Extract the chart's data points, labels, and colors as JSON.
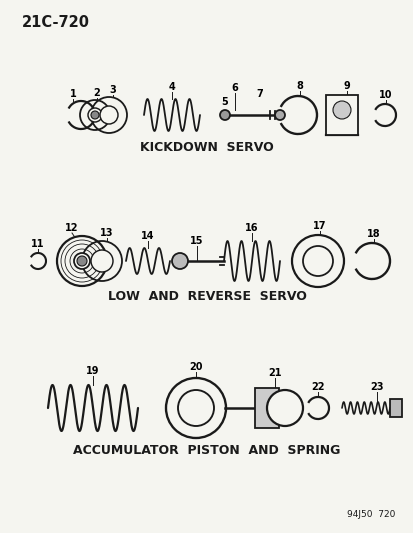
{
  "title_code": "21C-720",
  "bg_color": "#f5f5f0",
  "line_color": "#1a1a1a",
  "section1_label": "KICKDOWN  SERVO",
  "section2_label": "LOW  AND  REVERSE  SERVO",
  "section3_label": "ACCUMULATOR  PISTON  AND  SPRING",
  "footer": "94J50  720",
  "figsize": [
    4.14,
    5.33
  ],
  "dpi": 100
}
